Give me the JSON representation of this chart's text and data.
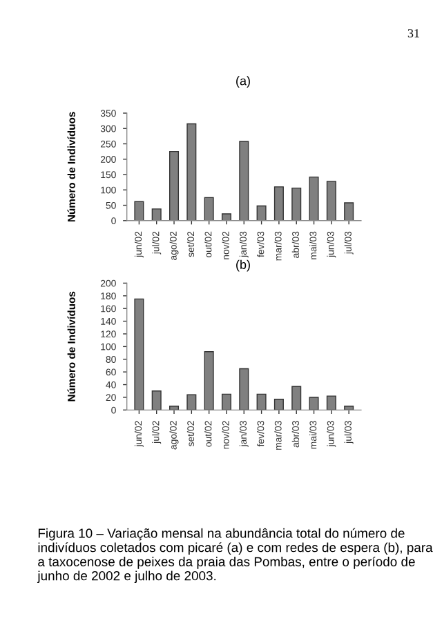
{
  "chart_data": [
    {
      "type": "bar",
      "title": "(a)",
      "ylabel": "Número de Indivíduos",
      "categories": [
        "jun/02",
        "jul/02",
        "ago/02",
        "set/02",
        "out/02",
        "nov/02",
        "jan/03",
        "fev/03",
        "mar/03",
        "abr/03",
        "mai/03",
        "jun/03",
        "jul/03"
      ],
      "values": [
        62,
        38,
        225,
        315,
        75,
        22,
        258,
        48,
        110,
        106,
        142,
        128,
        58
      ],
      "color": "#808080",
      "ylim": [
        0,
        350
      ],
      "yticks": [
        0,
        50,
        100,
        150,
        200,
        250,
        300,
        350
      ],
      "grid": false,
      "annotations": [
        "31"
      ]
    },
    {
      "type": "bar",
      "title": "(b)",
      "ylabel": "Número de Indivíduos",
      "categories": [
        "jun/02",
        "jul/02",
        "ago/02",
        "set/02",
        "out/02",
        "nov/02",
        "jan/03",
        "fev/03",
        "mar/03",
        "abr/03",
        "mai/03",
        "jun/03",
        "jul/03"
      ],
      "values": [
        175,
        30,
        6,
        24,
        92,
        25,
        65,
        25,
        17,
        37,
        20,
        22,
        6
      ],
      "color": "#808080",
      "ylim": [
        0,
        200
      ],
      "yticks": [
        0,
        20,
        40,
        60,
        80,
        100,
        120,
        140,
        160,
        180,
        200
      ],
      "grid": false,
      "annotations": [
        "Figura 10 – Variação mensal na abundância total do número de indivíduos coletados com picaré (a) e com redes de espera (b), para a taxocenose de peixes da praia das Pombas, entre o período de junho de 2002 e julho de 2003."
      ]
    }
  ]
}
